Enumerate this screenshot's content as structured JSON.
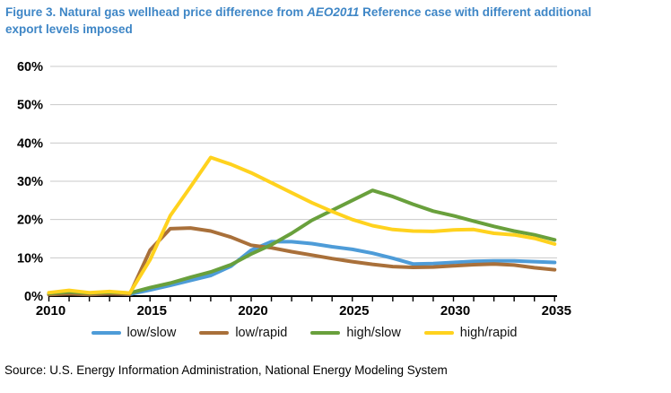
{
  "title": {
    "prefix": "Figure 3. Natural gas wellhead price difference from ",
    "italic_word": "AEO2011",
    "after_italic": " Reference case with different additional",
    "line2": "export levels imposed",
    "color": "#3E86C6"
  },
  "source": "Source: U.S. Energy Information Administration, National Energy Modeling System",
  "colors": {
    "gridline": "#C9C9C9",
    "axis": "#000000",
    "axis_text": "#000000"
  },
  "chart_data": {
    "type": "line",
    "title": "Natural gas wellhead price difference from AEO2011 Reference case with different additional export levels imposed",
    "xlabel": "",
    "ylabel": "",
    "x": [
      2010,
      2011,
      2012,
      2013,
      2014,
      2015,
      2016,
      2017,
      2018,
      2019,
      2020,
      2021,
      2022,
      2023,
      2024,
      2025,
      2026,
      2027,
      2028,
      2029,
      2030,
      2031,
      2032,
      2033,
      2034,
      2035
    ],
    "x_tick_labels": [
      2010,
      2015,
      2020,
      2025,
      2030,
      2035
    ],
    "ylim": [
      0,
      60
    ],
    "ytick_step": 10,
    "ytick_suffix": "%",
    "grid": "horizontal",
    "legend_position": "bottom",
    "series": [
      {
        "name": "low/slow",
        "color": "#4E9CD8",
        "values": [
          0.5,
          0.8,
          0.5,
          0.7,
          0.5,
          1.6,
          2.8,
          4.1,
          5.4,
          7.8,
          12.0,
          14.2,
          14.2,
          13.7,
          12.9,
          12.2,
          11.2,
          9.9,
          8.4,
          8.5,
          8.8,
          9.1,
          9.2,
          9.2,
          9.0,
          8.8
        ]
      },
      {
        "name": "low/rapid",
        "color": "#A9703A",
        "values": [
          0.4,
          0.6,
          0.4,
          0.6,
          0.5,
          12.0,
          17.6,
          17.8,
          17.0,
          15.4,
          13.3,
          12.6,
          11.6,
          10.7,
          9.8,
          9.0,
          8.3,
          7.7,
          7.5,
          7.6,
          7.9,
          8.2,
          8.4,
          8.1,
          7.4,
          6.9
        ]
      },
      {
        "name": "high/slow",
        "color": "#69A03C",
        "values": [
          0.7,
          1.1,
          0.8,
          1.0,
          0.8,
          2.2,
          3.4,
          4.9,
          6.3,
          8.2,
          11.0,
          13.4,
          16.4,
          19.8,
          22.4,
          25.0,
          27.6,
          26.0,
          24.0,
          22.2,
          21.0,
          19.6,
          18.2,
          17.0,
          16.0,
          14.7
        ]
      },
      {
        "name": "high/rapid",
        "color": "#FFD21E",
        "values": [
          0.9,
          1.5,
          0.9,
          1.2,
          0.8,
          9.5,
          21.0,
          28.5,
          36.2,
          34.4,
          32.2,
          29.6,
          27.0,
          24.4,
          22.1,
          20.0,
          18.4,
          17.4,
          17.0,
          16.9,
          17.3,
          17.4,
          16.4,
          16.0,
          15.1,
          13.6
        ]
      }
    ]
  }
}
